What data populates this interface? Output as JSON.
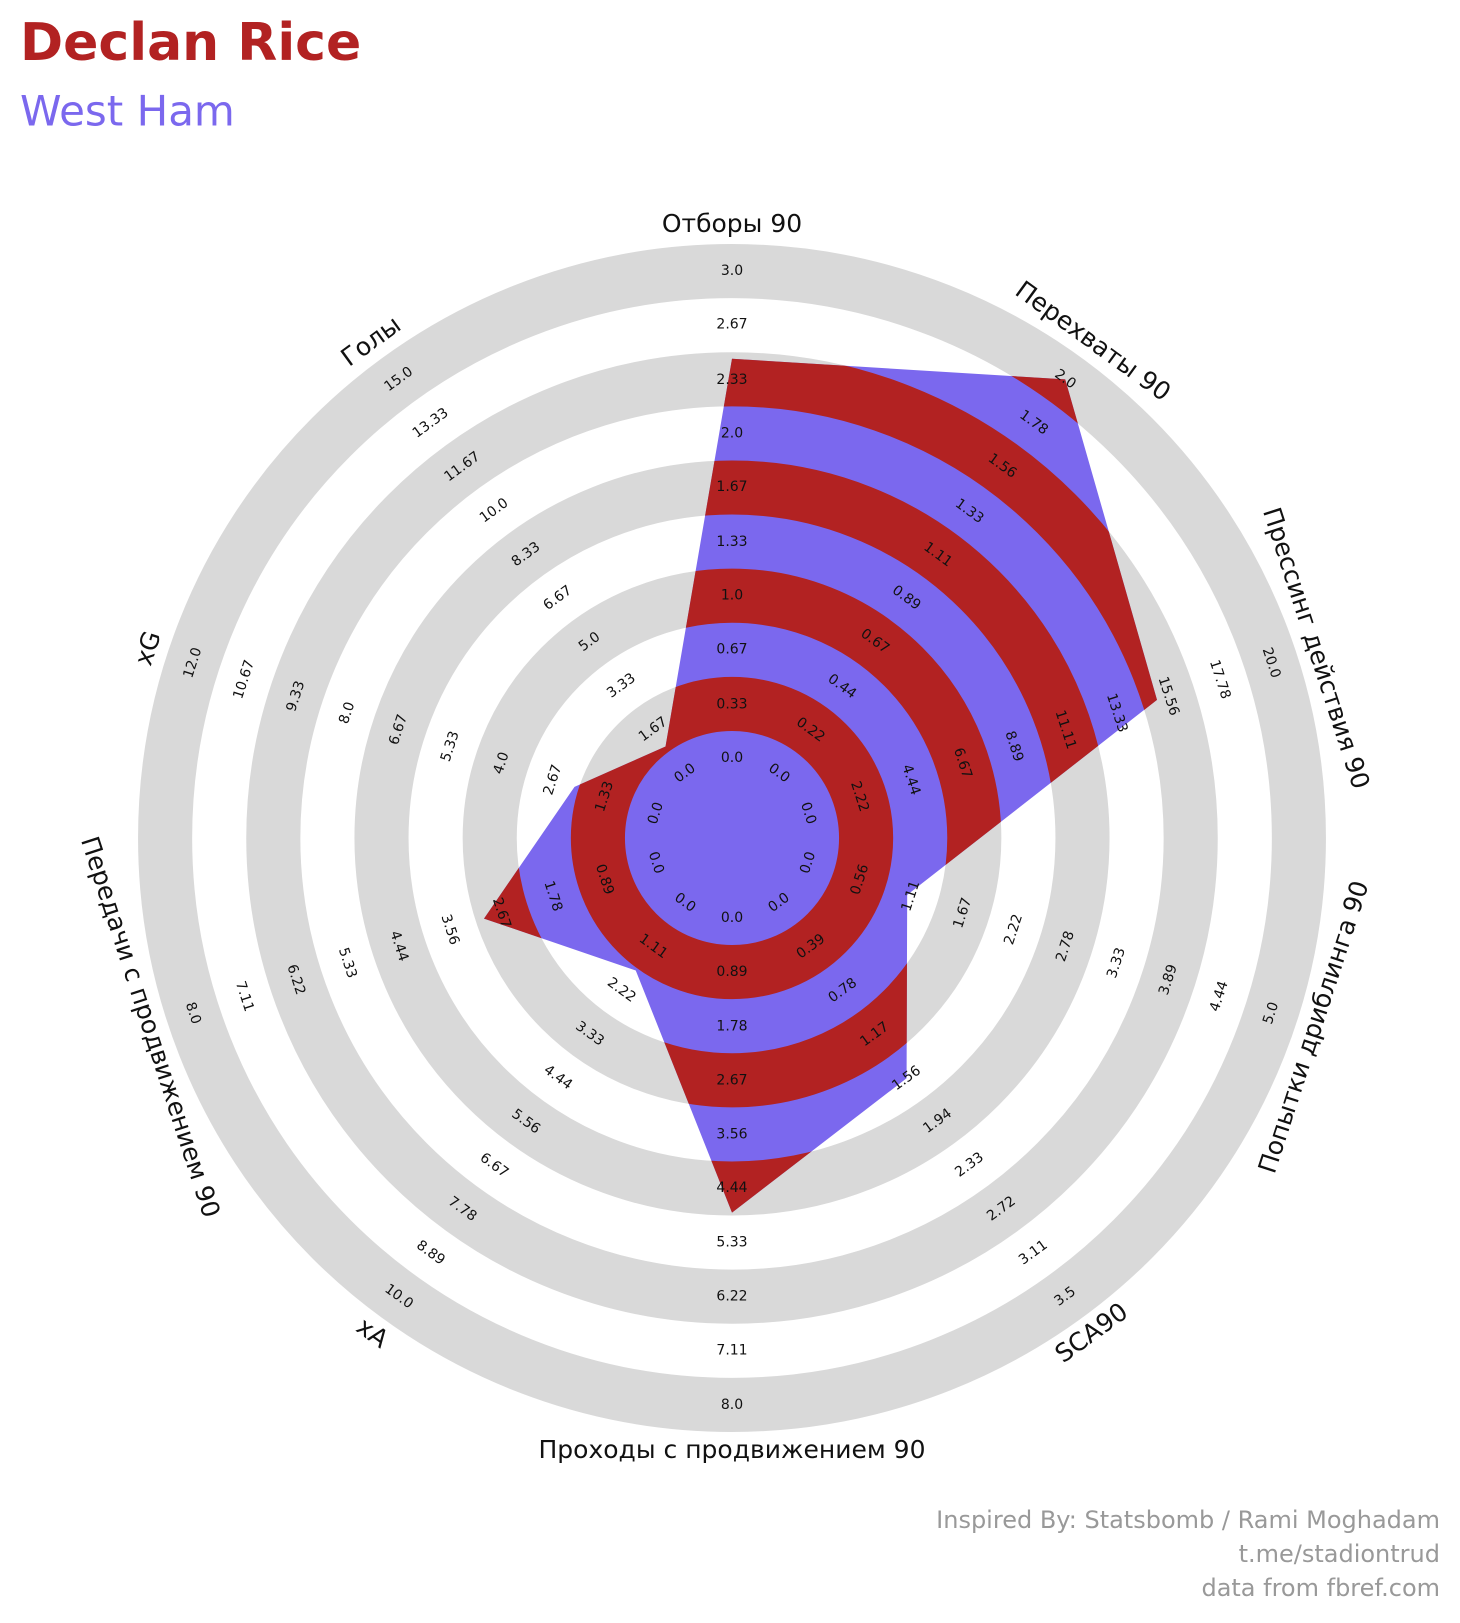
{
  "chart_data": {
    "type": "radar",
    "title": "Declan Rice",
    "subtitle": "West Ham",
    "categories": [
      "Отборы 90",
      "Перехваты 90",
      "Прессинг действия 90",
      "Попытки дриблинга 90",
      "SCA90",
      "Проходы с продвижением 90",
      "xA",
      "Передачи с продвижением 90",
      "xG",
      "Голы"
    ],
    "values": [
      2.46,
      2.0,
      15.07,
      1.07,
      1.56,
      4.84,
      1.72,
      2.97,
      2.11,
      1.02
    ],
    "colors": [
      "#b22222",
      "#7b68ee"
    ],
    "ring_color": "#d9d9d9",
    "axes": [
      {
        "lim": [
          0,
          3
        ],
        "ticks": [
          {
            "value": 0,
            "label": "0.0"
          },
          0.33,
          0.67,
          {
            "value": 1,
            "label": "1.0"
          },
          1.33,
          1.67,
          {
            "value": 2,
            "label": "2.0"
          },
          2.33,
          2.67,
          {
            "value": 3,
            "label": "3.0"
          }
        ]
      },
      {
        "lim": [
          0,
          2
        ],
        "ticks": [
          {
            "value": 0,
            "label": "0.0"
          },
          0.22,
          0.44,
          0.67,
          0.89,
          1.11,
          1.33,
          1.56,
          1.78,
          {
            "value": 2,
            "label": "2.0"
          }
        ]
      },
      {
        "lim": [
          0,
          20
        ],
        "ticks": [
          {
            "value": 0,
            "label": "0.0"
          },
          2.22,
          4.44,
          6.67,
          8.89,
          11.11,
          13.33,
          15.56,
          17.78,
          {
            "value": 20,
            "label": "20.0"
          }
        ]
      },
      {
        "lim": [
          0,
          5
        ],
        "ticks": [
          {
            "value": 0,
            "label": "0.0"
          },
          0.56,
          1.11,
          1.67,
          2.22,
          2.78,
          3.33,
          3.89,
          4.44,
          {
            "value": 5,
            "label": "5.0"
          }
        ]
      },
      {
        "lim": [
          0,
          3.5
        ],
        "ticks": [
          {
            "value": 0,
            "label": "0.0"
          },
          0.39,
          0.78,
          1.17,
          1.56,
          1.94,
          2.33,
          2.72,
          3.11,
          3.5
        ]
      },
      {
        "lim": [
          0,
          8
        ],
        "ticks": [
          {
            "value": 0,
            "label": "0.0"
          },
          0.89,
          1.78,
          2.67,
          3.56,
          4.44,
          5.33,
          6.22,
          7.11,
          {
            "value": 8,
            "label": "8.0"
          }
        ]
      },
      {
        "lim": [
          0,
          10
        ],
        "ticks": [
          {
            "value": 0,
            "label": "0.0"
          },
          1.11,
          2.22,
          3.33,
          4.44,
          5.56,
          6.67,
          7.78,
          8.89,
          {
            "value": 10,
            "label": "10.0"
          }
        ]
      },
      {
        "lim": [
          0,
          8
        ],
        "ticks": [
          {
            "value": 0,
            "label": "0.0"
          },
          0.89,
          1.78,
          2.67,
          3.56,
          4.44,
          5.33,
          6.22,
          7.11,
          {
            "value": 8,
            "label": "8.0"
          }
        ]
      },
      {
        "lim": [
          0,
          12
        ],
        "ticks": [
          {
            "value": 0,
            "label": "0.0"
          },
          1.33,
          2.67,
          {
            "value": 4,
            "label": "4.0"
          },
          5.33,
          6.67,
          {
            "value": 8,
            "label": "8.0"
          },
          9.33,
          10.67,
          {
            "value": 12,
            "label": "12.0"
          }
        ]
      },
      {
        "lim": [
          0,
          15
        ],
        "ticks": [
          {
            "value": 0,
            "label": "0.0"
          },
          1.67,
          3.33,
          {
            "value": 5,
            "label": "5.0"
          },
          6.67,
          8.33,
          {
            "value": 10,
            "label": "10.0"
          },
          11.67,
          13.33,
          {
            "value": 15,
            "label": "15.0"
          }
        ]
      }
    ],
    "credits": [
      "Inspired By: Statsbomb / Rami Moghadam",
      "t.me/stadiontrud",
      "data from fbref.com"
    ]
  }
}
